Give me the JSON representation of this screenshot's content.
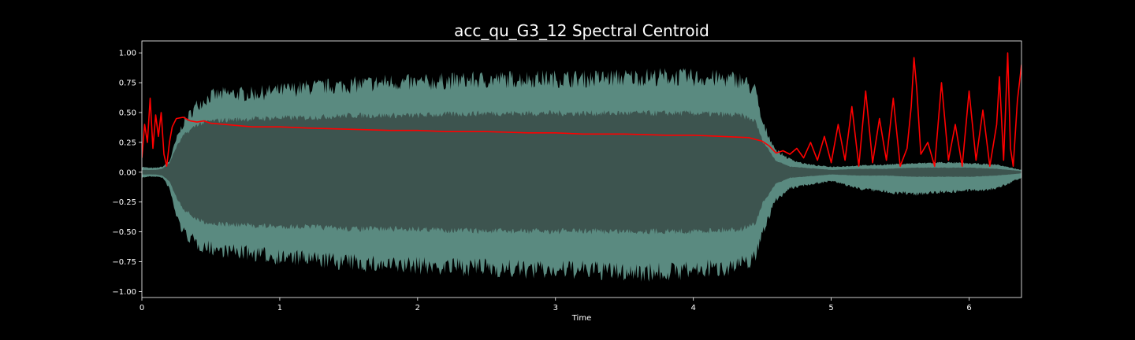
{
  "chart_data": {
    "type": "area",
    "title": "acc_qu_G3_12 Spectral Centroid",
    "xlabel": "Time",
    "ylabel": "",
    "xlim": [
      0,
      6.38
    ],
    "ylim": [
      -1.05,
      1.1
    ],
    "x_ticks": [
      {
        "value": 0,
        "label": "0"
      },
      {
        "value": 1,
        "label": "1"
      },
      {
        "value": 2,
        "label": "2"
      },
      {
        "value": 3,
        "label": "3"
      },
      {
        "value": 4,
        "label": "4"
      },
      {
        "value": 5,
        "label": "5"
      },
      {
        "value": 6,
        "label": "6"
      }
    ],
    "y_ticks": [
      {
        "value": 1.0,
        "label": "1.00"
      },
      {
        "value": 0.75,
        "label": "0.75"
      },
      {
        "value": 0.5,
        "label": "0.50"
      },
      {
        "value": 0.25,
        "label": "0.25"
      },
      {
        "value": 0.0,
        "label": "0.00"
      },
      {
        "value": -0.25,
        "label": "−0.25"
      },
      {
        "value": -0.5,
        "label": "−0.50"
      },
      {
        "value": -0.75,
        "label": "−0.75"
      },
      {
        "value": -1.0,
        "label": "−1.00"
      }
    ],
    "grid": false,
    "background_color": "#000000",
    "waveform": {
      "fill_color": "#5a8a80",
      "inner_color": "#3d544f",
      "envelope": {
        "x": [
          0,
          0.05,
          0.1,
          0.15,
          0.2,
          0.25,
          0.3,
          0.4,
          0.5,
          0.6,
          0.8,
          1.0,
          1.2,
          1.5,
          1.8,
          2.0,
          2.2,
          2.5,
          2.8,
          3.0,
          3.2,
          3.5,
          3.8,
          4.0,
          4.2,
          4.35,
          4.45,
          4.5,
          4.6,
          4.7,
          4.8,
          4.9,
          5.0,
          5.2,
          5.4,
          5.6,
          5.8,
          6.0,
          6.2,
          6.38
        ],
        "max": [
          0.05,
          0.04,
          0.04,
          0.05,
          0.1,
          0.3,
          0.45,
          0.62,
          0.7,
          0.72,
          0.72,
          0.75,
          0.78,
          0.8,
          0.83,
          0.82,
          0.84,
          0.85,
          0.86,
          0.86,
          0.86,
          0.87,
          0.88,
          0.87,
          0.86,
          0.85,
          0.75,
          0.45,
          0.2,
          0.12,
          0.08,
          0.06,
          0.05,
          0.06,
          0.07,
          0.08,
          0.09,
          0.08,
          0.07,
          0.02
        ],
        "min": [
          -0.05,
          -0.04,
          -0.04,
          -0.05,
          -0.15,
          -0.4,
          -0.55,
          -0.66,
          -0.7,
          -0.72,
          -0.75,
          -0.78,
          -0.8,
          -0.83,
          -0.86,
          -0.86,
          -0.87,
          -0.88,
          -0.9,
          -0.9,
          -0.9,
          -0.92,
          -0.92,
          -0.9,
          -0.88,
          -0.85,
          -0.78,
          -0.55,
          -0.25,
          -0.15,
          -0.12,
          -0.1,
          -0.08,
          -0.15,
          -0.18,
          -0.2,
          -0.18,
          -0.17,
          -0.15,
          -0.05
        ],
        "inner": [
          0.02,
          0.02,
          0.02,
          0.03,
          0.08,
          0.22,
          0.32,
          0.42,
          0.45,
          0.46,
          0.47,
          0.48,
          0.48,
          0.5,
          0.5,
          0.5,
          0.51,
          0.52,
          0.52,
          0.52,
          0.52,
          0.52,
          0.52,
          0.52,
          0.51,
          0.5,
          0.45,
          0.28,
          0.1,
          0.05,
          0.04,
          0.03,
          0.02,
          0.03,
          0.03,
          0.04,
          0.04,
          0.04,
          0.03,
          0.01
        ]
      }
    },
    "series": [
      {
        "color": "#ff0000",
        "x": [
          0,
          0.02,
          0.04,
          0.06,
          0.08,
          0.1,
          0.12,
          0.14,
          0.16,
          0.18,
          0.2,
          0.22,
          0.25,
          0.3,
          0.35,
          0.4,
          0.45,
          0.5,
          0.6,
          0.8,
          1.0,
          1.2,
          1.5,
          1.8,
          2.0,
          2.2,
          2.5,
          2.8,
          3.0,
          3.2,
          3.5,
          3.8,
          4.0,
          4.2,
          4.4,
          4.5,
          4.55,
          4.6,
          4.65,
          4.7,
          4.75,
          4.8,
          4.85,
          4.9,
          4.95,
          5.0,
          5.05,
          5.1,
          5.15,
          5.2,
          5.25,
          5.3,
          5.35,
          5.4,
          5.45,
          5.5,
          5.55,
          5.58,
          5.6,
          5.62,
          5.65,
          5.7,
          5.75,
          5.8,
          5.85,
          5.9,
          5.95,
          6.0,
          6.05,
          6.1,
          6.15,
          6.2,
          6.22,
          6.25,
          6.28,
          6.3,
          6.32,
          6.35,
          6.38
        ],
        "y": [
          0.12,
          0.4,
          0.25,
          0.62,
          0.2,
          0.48,
          0.3,
          0.5,
          0.15,
          0.05,
          0.25,
          0.38,
          0.45,
          0.46,
          0.43,
          0.42,
          0.43,
          0.41,
          0.4,
          0.38,
          0.38,
          0.37,
          0.36,
          0.35,
          0.35,
          0.34,
          0.34,
          0.33,
          0.33,
          0.32,
          0.32,
          0.31,
          0.31,
          0.3,
          0.29,
          0.26,
          0.22,
          0.16,
          0.18,
          0.15,
          0.2,
          0.12,
          0.25,
          0.1,
          0.3,
          0.08,
          0.4,
          0.1,
          0.55,
          0.05,
          0.68,
          0.08,
          0.45,
          0.1,
          0.62,
          0.05,
          0.2,
          0.55,
          0.96,
          0.7,
          0.15,
          0.25,
          0.05,
          0.75,
          0.1,
          0.4,
          0.05,
          0.68,
          0.1,
          0.52,
          0.05,
          0.4,
          0.8,
          0.1,
          1.0,
          0.2,
          0.05,
          0.6,
          0.9
        ]
      }
    ]
  }
}
